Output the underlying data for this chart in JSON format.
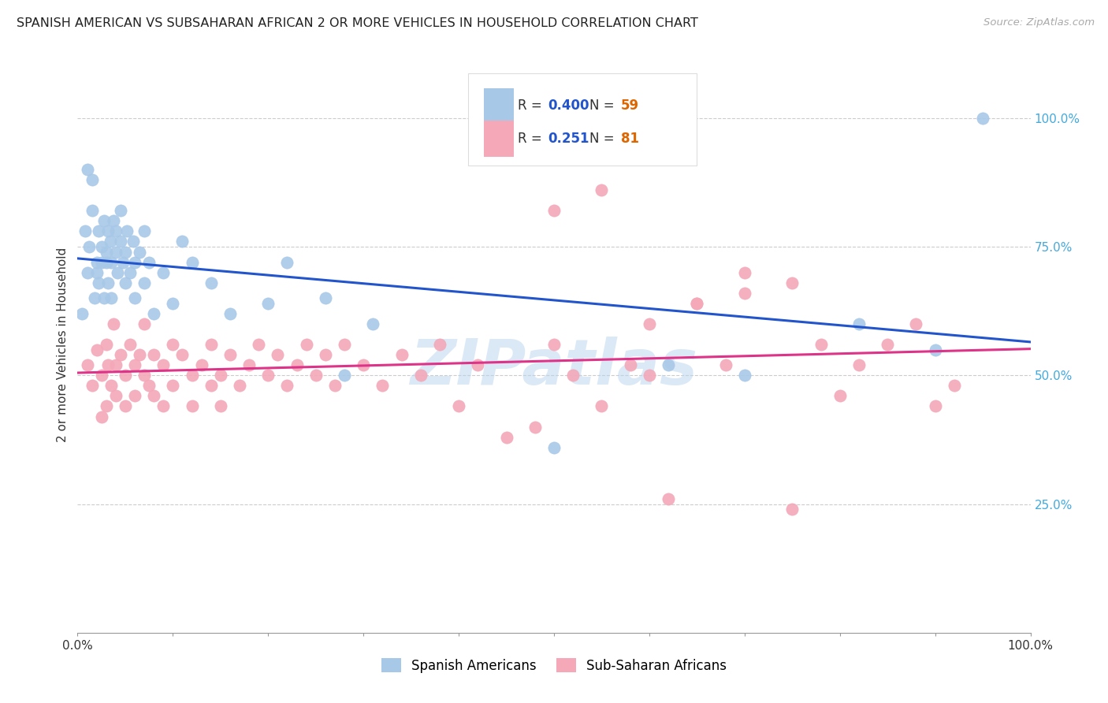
{
  "title": "SPANISH AMERICAN VS SUBSAHARAN AFRICAN 2 OR MORE VEHICLES IN HOUSEHOLD CORRELATION CHART",
  "source": "Source: ZipAtlas.com",
  "ylabel": "2 or more Vehicles in Household",
  "watermark": "ZIPatlas",
  "legend_blue_r": "0.400",
  "legend_blue_n": "59",
  "legend_pink_r": "0.251",
  "legend_pink_n": "81",
  "legend_label_blue": "Spanish Americans",
  "legend_label_pink": "Sub-Saharan Africans",
  "blue_color": "#a8c8e8",
  "pink_color": "#f4a8b8",
  "line_blue": "#2255cc",
  "line_pink": "#dd3388",
  "title_color": "#222222",
  "right_axis_color": "#44aadd",
  "legend_r_color": "#2255cc",
  "legend_n_color": "#dd6600",
  "blue_x": [
    0.005,
    0.008,
    0.01,
    0.01,
    0.012,
    0.015,
    0.015,
    0.018,
    0.02,
    0.02,
    0.022,
    0.022,
    0.025,
    0.025,
    0.028,
    0.028,
    0.03,
    0.03,
    0.032,
    0.032,
    0.034,
    0.035,
    0.035,
    0.038,
    0.04,
    0.04,
    0.042,
    0.045,
    0.045,
    0.048,
    0.05,
    0.05,
    0.052,
    0.055,
    0.058,
    0.06,
    0.06,
    0.065,
    0.07,
    0.07,
    0.075,
    0.08,
    0.09,
    0.1,
    0.11,
    0.12,
    0.14,
    0.16,
    0.2,
    0.22,
    0.26,
    0.28,
    0.31,
    0.5,
    0.62,
    0.7,
    0.82,
    0.9,
    0.95
  ],
  "blue_y": [
    0.62,
    0.78,
    0.7,
    0.9,
    0.75,
    0.82,
    0.88,
    0.65,
    0.7,
    0.72,
    0.68,
    0.78,
    0.72,
    0.75,
    0.8,
    0.65,
    0.72,
    0.74,
    0.78,
    0.68,
    0.76,
    0.65,
    0.72,
    0.8,
    0.74,
    0.78,
    0.7,
    0.76,
    0.82,
    0.72,
    0.68,
    0.74,
    0.78,
    0.7,
    0.76,
    0.65,
    0.72,
    0.74,
    0.68,
    0.78,
    0.72,
    0.62,
    0.7,
    0.64,
    0.76,
    0.72,
    0.68,
    0.62,
    0.64,
    0.72,
    0.65,
    0.5,
    0.6,
    0.36,
    0.52,
    0.5,
    0.6,
    0.55,
    1.0
  ],
  "pink_x": [
    0.01,
    0.015,
    0.02,
    0.025,
    0.025,
    0.03,
    0.03,
    0.032,
    0.035,
    0.038,
    0.04,
    0.04,
    0.045,
    0.05,
    0.05,
    0.055,
    0.06,
    0.06,
    0.065,
    0.07,
    0.07,
    0.075,
    0.08,
    0.08,
    0.09,
    0.09,
    0.1,
    0.1,
    0.11,
    0.12,
    0.12,
    0.13,
    0.14,
    0.14,
    0.15,
    0.15,
    0.16,
    0.17,
    0.18,
    0.19,
    0.2,
    0.21,
    0.22,
    0.23,
    0.24,
    0.25,
    0.26,
    0.27,
    0.28,
    0.3,
    0.32,
    0.34,
    0.36,
    0.38,
    0.4,
    0.42,
    0.45,
    0.48,
    0.5,
    0.52,
    0.55,
    0.58,
    0.6,
    0.62,
    0.65,
    0.68,
    0.7,
    0.75,
    0.78,
    0.8,
    0.82,
    0.85,
    0.88,
    0.9,
    0.92,
    0.5,
    0.55,
    0.6,
    0.65,
    0.7,
    0.75
  ],
  "pink_y": [
    0.52,
    0.48,
    0.55,
    0.5,
    0.42,
    0.56,
    0.44,
    0.52,
    0.48,
    0.6,
    0.52,
    0.46,
    0.54,
    0.5,
    0.44,
    0.56,
    0.52,
    0.46,
    0.54,
    0.5,
    0.6,
    0.48,
    0.54,
    0.46,
    0.52,
    0.44,
    0.56,
    0.48,
    0.54,
    0.5,
    0.44,
    0.52,
    0.48,
    0.56,
    0.5,
    0.44,
    0.54,
    0.48,
    0.52,
    0.56,
    0.5,
    0.54,
    0.48,
    0.52,
    0.56,
    0.5,
    0.54,
    0.48,
    0.56,
    0.52,
    0.48,
    0.54,
    0.5,
    0.56,
    0.44,
    0.52,
    0.38,
    0.4,
    0.56,
    0.5,
    0.44,
    0.52,
    0.5,
    0.26,
    0.64,
    0.52,
    0.66,
    0.24,
    0.56,
    0.46,
    0.52,
    0.56,
    0.6,
    0.44,
    0.48,
    0.82,
    0.86,
    0.6,
    0.64,
    0.7,
    0.68
  ]
}
